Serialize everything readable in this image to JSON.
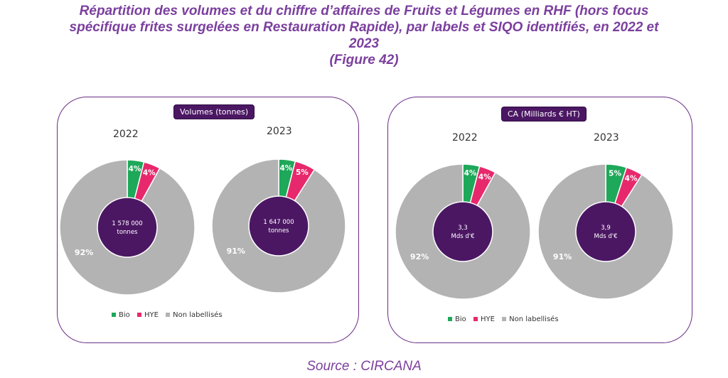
{
  "title_lines": [
    "Répartition des volumes et du chiffre d’affaires de Fruits et Légumes en RHF (hors focus",
    "spécifique frites surgelées en Restauration Rapide), par labels et SIQO identifiés, en 2022 et",
    "2023",
    "(Figure 42)"
  ],
  "source": "Source : CIRCANA",
  "colors": {
    "Bio": "#1ea859",
    "HYE": "#e8286c",
    "Non labellisés": "#b3b3b3",
    "center": "#4b1763"
  },
  "chart_data": [
    {
      "type": "pie",
      "title": "Volumes (tonnes)",
      "legend": [
        "Bio",
        "HYE",
        "Non labellisés"
      ],
      "legend_position": "bottom",
      "pies": [
        {
          "year": "2022",
          "center_label": [
            "1 578 000",
            "tonnes"
          ],
          "slices": [
            {
              "label": "Bio",
              "value": 4,
              "text": "4%"
            },
            {
              "label": "HYE",
              "value": 4,
              "text": "4%"
            },
            {
              "label": "Non labellisés",
              "value": 92,
              "text": "92%"
            }
          ]
        },
        {
          "year": "2023",
          "center_label": [
            "1 647 000",
            "tonnes"
          ],
          "slices": [
            {
              "label": "Bio",
              "value": 4,
              "text": "4%"
            },
            {
              "label": "HYE",
              "value": 5,
              "text": "5%"
            },
            {
              "label": "Non labellisés",
              "value": 91,
              "text": "91%"
            }
          ]
        }
      ]
    },
    {
      "type": "pie",
      "title": "CA (Milliards € HT)",
      "legend": [
        "Bio",
        "HYE",
        "Non labellisés"
      ],
      "legend_position": "bottom",
      "pies": [
        {
          "year": "2022",
          "center_label": [
            "3,3",
            "Mds d'€"
          ],
          "slices": [
            {
              "label": "Bio",
              "value": 4,
              "text": "4%"
            },
            {
              "label": "HYE",
              "value": 4,
              "text": "4%"
            },
            {
              "label": "Non labellisés",
              "value": 92,
              "text": "92%"
            }
          ]
        },
        {
          "year": "2023",
          "center_label": [
            "3,9",
            "Mds d'€"
          ],
          "slices": [
            {
              "label": "Bio",
              "value": 5,
              "text": "5%"
            },
            {
              "label": "HYE",
              "value": 4,
              "text": "4%"
            },
            {
              "label": "Non labellisés",
              "value": 91,
              "text": "91%"
            }
          ]
        }
      ]
    }
  ]
}
